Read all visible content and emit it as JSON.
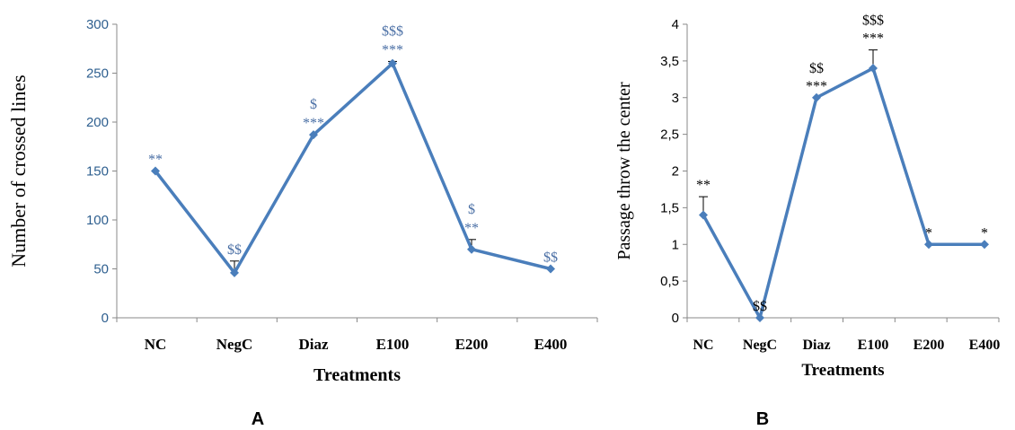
{
  "panels": [
    {
      "label": "A"
    },
    {
      "label": "B"
    }
  ],
  "chart_data": [
    {
      "type": "line",
      "title": "",
      "xlabel": "Treatments",
      "ylabel": "Number of crossed lines",
      "categories": [
        "NC",
        "NegC",
        "Diaz",
        "E100",
        "E200",
        "E400"
      ],
      "series": [
        {
          "values": [
            150,
            46,
            187,
            260,
            70,
            50
          ],
          "error_plus": [
            0,
            12,
            0,
            2,
            10,
            0
          ]
        }
      ],
      "ylim": [
        0,
        300
      ],
      "y_ticks": [
        "0",
        "50",
        "100",
        "150",
        "200",
        "250",
        "300"
      ],
      "annotations": [
        {
          "category": "NC",
          "lines": [
            "**"
          ]
        },
        {
          "category": "NegC",
          "lines": [
            "$$"
          ]
        },
        {
          "category": "Diaz",
          "lines": [
            "$",
            "***"
          ]
        },
        {
          "category": "E100",
          "lines": [
            "$$$",
            "***"
          ]
        },
        {
          "category": "E200",
          "lines": [
            "$",
            "**"
          ]
        },
        {
          "category": "E400",
          "lines": [
            "$$"
          ]
        }
      ],
      "color": "#4a7ebb",
      "tick_color": "#2e5f8f",
      "annotation_color": "#4a6fa5",
      "grid": false,
      "legend": "none"
    },
    {
      "type": "line",
      "title": "",
      "xlabel": "Treatments",
      "ylabel": "Passage throw the center",
      "categories": [
        "NC",
        "NegC",
        "Diaz",
        "E100",
        "E200",
        "E400"
      ],
      "series": [
        {
          "values": [
            1.4,
            0,
            3.0,
            3.4,
            1.0,
            1.0
          ],
          "error_plus": [
            0.25,
            0,
            0,
            0.25,
            0,
            0
          ]
        }
      ],
      "ylim": [
        0,
        4
      ],
      "y_ticks": [
        "0",
        "0,5",
        "1",
        "1,5",
        "2",
        "2,5",
        "3",
        "3,5",
        "4"
      ],
      "annotations": [
        {
          "category": "NC",
          "lines": [
            "**"
          ]
        },
        {
          "category": "NegC",
          "lines": [
            "$$"
          ]
        },
        {
          "category": "Diaz",
          "lines": [
            "$$",
            "***"
          ]
        },
        {
          "category": "E100",
          "lines": [
            "$$$",
            "***"
          ]
        },
        {
          "category": "E200",
          "lines": [
            "*"
          ]
        },
        {
          "category": "E400",
          "lines": [
            "*"
          ]
        }
      ],
      "color": "#4a7ebb",
      "tick_color": "#000000",
      "annotation_color": "#000000",
      "grid": false,
      "legend": "none"
    }
  ]
}
